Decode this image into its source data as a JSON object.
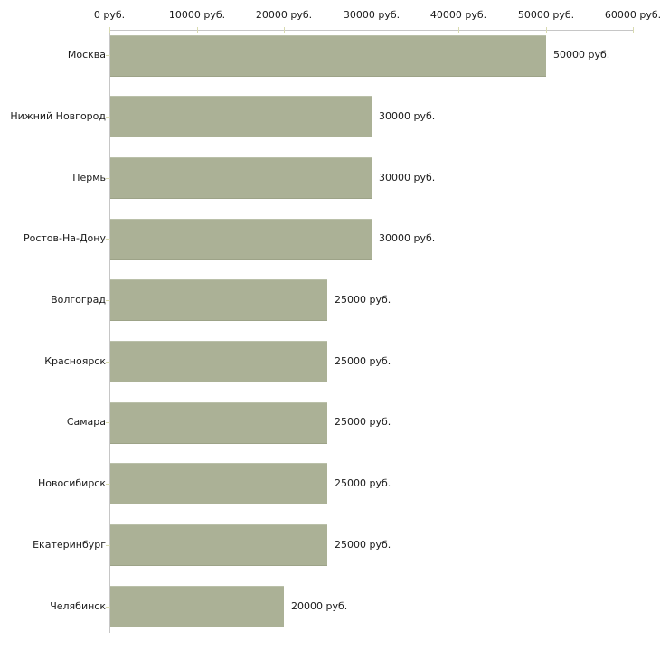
{
  "chart_data": {
    "type": "bar",
    "orientation": "horizontal",
    "title": "",
    "xlabel": "",
    "ylabel": "",
    "xlim": [
      0,
      60000
    ],
    "grid": false,
    "legend": null,
    "categories": [
      "Москва",
      "Нижний Новгород",
      "Пермь",
      "Ростов-На-Дону",
      "Волгоград",
      "Красноярск",
      "Самара",
      "Новосибирск",
      "Екатеринбург",
      "Челябинск"
    ],
    "values": [
      50000,
      30000,
      30000,
      30000,
      25000,
      25000,
      25000,
      25000,
      25000,
      20000
    ],
    "bar_value_labels": [
      "50000 руб.",
      "30000 руб.",
      "30000 руб.",
      "30000 руб.",
      "25000 руб.",
      "25000 руб.",
      "25000 руб.",
      "25000 руб.",
      "25000 руб.",
      "20000 руб."
    ],
    "x_ticks": [
      0,
      10000,
      20000,
      30000,
      40000,
      50000,
      60000
    ],
    "x_tick_labels": [
      "0 руб.",
      "10000 руб.",
      "20000 руб.",
      "30000 руб.",
      "40000 руб.",
      "50000 руб.",
      "60000 руб."
    ],
    "colors": {
      "bar_fill": "#abb196",
      "bar_edge_top": "#bac0a9",
      "bar_edge_bottom": "#9da388",
      "axis_line": "#c6c6c6",
      "tick_mark": "#d8dab0",
      "text": "#1a1a1a",
      "background": "#ffffff"
    }
  }
}
